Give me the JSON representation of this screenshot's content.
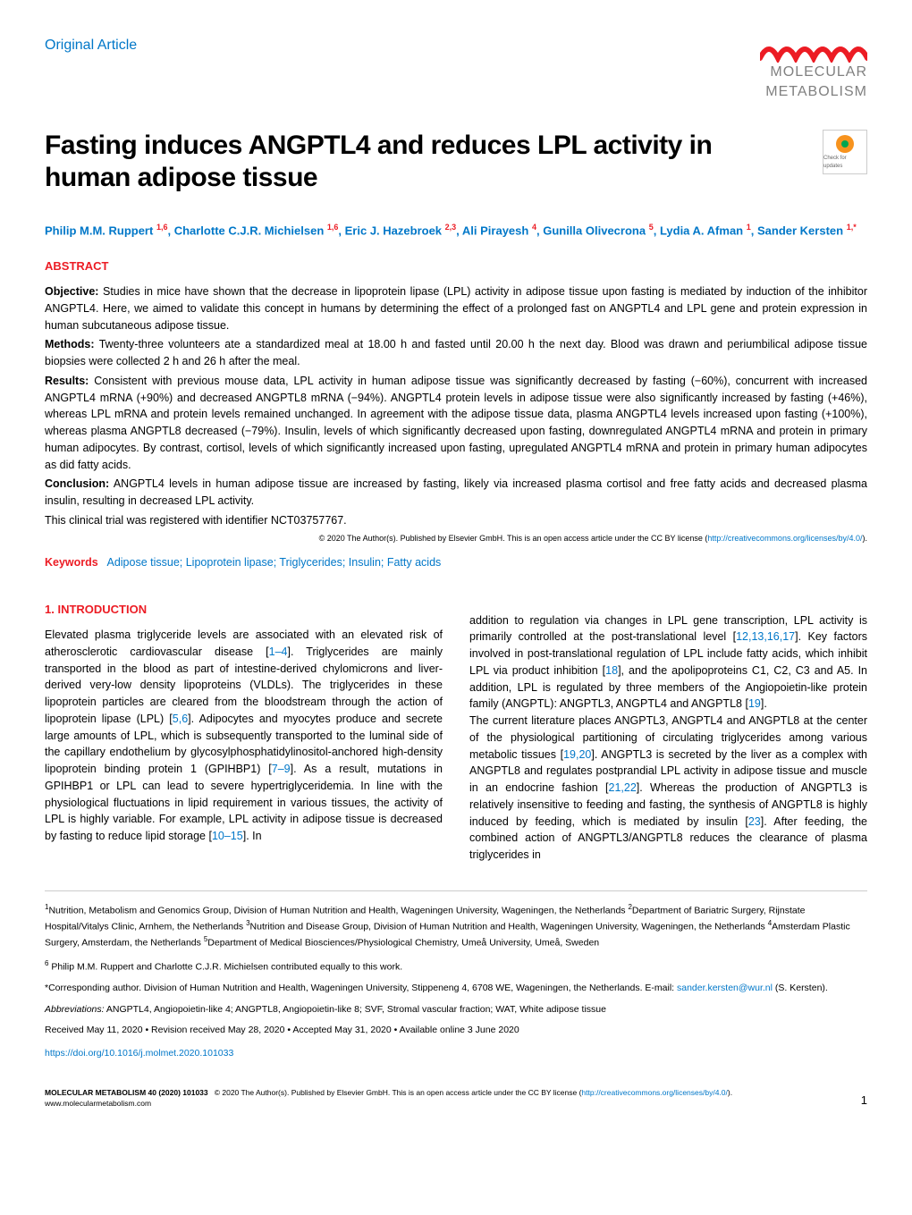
{
  "colors": {
    "brand_blue": "#0077c8",
    "brand_red": "#ec1c24",
    "text_gray": "#808080",
    "text_black": "#000000",
    "background": "#ffffff"
  },
  "header": {
    "article_type": "Original Article",
    "logo_line1": "MOLECULAR",
    "logo_line2": "METABOLISM",
    "check_updates": "Check for updates"
  },
  "title": "Fasting induces ANGPTL4 and reduces LPL activity in human adipose tissue",
  "authors_html": "Philip M.M. Ruppert|1,6|, Charlotte C.J.R. Michielsen|1,6|, Eric J. Hazebroek|2,3|, Ali Pirayesh|4|, Gunilla Olivecrona|5|, Lydia A. Afman|1|, Sander Kersten|1,*|",
  "abstract": {
    "heading": "ABSTRACT",
    "objective_label": "Objective:",
    "objective": "Studies in mice have shown that the decrease in lipoprotein lipase (LPL) activity in adipose tissue upon fasting is mediated by induction of the inhibitor ANGPTL4. Here, we aimed to validate this concept in humans by determining the effect of a prolonged fast on ANGPTL4 and LPL gene and protein expression in human subcutaneous adipose tissue.",
    "methods_label": "Methods:",
    "methods": "Twenty-three volunteers ate a standardized meal at 18.00 h and fasted until 20.00 h the next day. Blood was drawn and periumbilical adipose tissue biopsies were collected 2 h and 26 h after the meal.",
    "results_label": "Results:",
    "results": "Consistent with previous mouse data, LPL activity in human adipose tissue was significantly decreased by fasting (−60%), concurrent with increased ANGPTL4 mRNA (+90%) and decreased ANGPTL8 mRNA (−94%). ANGPTL4 protein levels in adipose tissue were also significantly increased by fasting (+46%), whereas LPL mRNA and protein levels remained unchanged. In agreement with the adipose tissue data, plasma ANGPTL4 levels increased upon fasting (+100%), whereas plasma ANGPTL8 decreased (−79%). Insulin, levels of which significantly decreased upon fasting, downregulated ANGPTL4 mRNA and protein in primary human adipocytes. By contrast, cortisol, levels of which significantly increased upon fasting, upregulated ANGPTL4 mRNA and protein in primary human adipocytes as did fatty acids.",
    "conclusion_label": "Conclusion:",
    "conclusion": "ANGPTL4 levels in human adipose tissue are increased by fasting, likely via increased plasma cortisol and free fatty acids and decreased plasma insulin, resulting in decreased LPL activity.",
    "registration": "This clinical trial was registered with identifier NCT03757767.",
    "license": "© 2020 The Author(s). Published by Elsevier GmbH. This is an open access article under the CC BY license (",
    "license_url_text": "http://creativecommons.org/licenses/by/4.0/",
    "license_close": ")."
  },
  "keywords": {
    "label": "Keywords",
    "values": "Adipose tissue; Lipoprotein lipase; Triglycerides; Insulin; Fatty acids"
  },
  "introduction": {
    "heading": "1. INTRODUCTION",
    "col1": "Elevated plasma triglyceride levels are associated with an elevated risk of atherosclerotic cardiovascular disease [1–4]. Triglycerides are mainly transported in the blood as part of intestine-derived chylomicrons and liver-derived very-low density lipoproteins (VLDLs). The triglycerides in these lipoprotein particles are cleared from the bloodstream through the action of lipoprotein lipase (LPL) [5,6]. Adipocytes and myocytes produce and secrete large amounts of LPL, which is subsequently transported to the luminal side of the capillary endothelium by glycosylphosphatidylinositol-anchored high-density lipoprotein binding protein 1 (GPIHBP1) [7–9]. As a result, mutations in GPIHBP1 or LPL can lead to severe hypertriglyceridemia. In line with the physiological fluctuations in lipid requirement in various tissues, the activity of LPL is highly variable. For example, LPL activity in adipose tissue is decreased by fasting to reduce lipid storage [10–15]. In",
    "col2": "addition to regulation via changes in LPL gene transcription, LPL activity is primarily controlled at the post-translational level [12,13,16,17]. Key factors involved in post-translational regulation of LPL include fatty acids, which inhibit LPL via product inhibition [18], and the apolipoproteins C1, C2, C3 and A5. In addition, LPL is regulated by three members of the Angiopoietin-like protein family (ANGPTL): ANGPTL3, ANGPTL4 and ANGPTL8 [19].\nThe current literature places ANGPTL3, ANGPTL4 and ANGPTL8 at the center of the physiological partitioning of circulating triglycerides among various metabolic tissues [19,20]. ANGPTL3 is secreted by the liver as a complex with ANGPTL8 and regulates postprandial LPL activity in adipose tissue and muscle in an endocrine fashion [21,22]. Whereas the production of ANGPTL3 is relatively insensitive to feeding and fasting, the synthesis of ANGPTL8 is highly induced by feeding, which is mediated by insulin [23]. After feeding, the combined action of ANGPTL3/ANGPTL8 reduces the clearance of plasma triglycerides in"
  },
  "affiliations": "1Nutrition, Metabolism and Genomics Group, Division of Human Nutrition and Health, Wageningen University, Wageningen, the Netherlands 2Department of Bariatric Surgery, Rijnstate Hospital/Vitalys Clinic, Arnhem, the Netherlands 3Nutrition and Disease Group, Division of Human Nutrition and Health, Wageningen University, Wageningen, the Netherlands 4Amsterdam Plastic Surgery, Amsterdam, the Netherlands 5Department of Medical Biosciences/Physiological Chemistry, Umeå University, Umeå, Sweden",
  "equal_contrib": "6 Philip M.M. Ruppert and Charlotte C.J.R. Michielsen contributed equally to this work.",
  "corresponding": "*Corresponding author. Division of Human Nutrition and Health, Wageningen University, Stippeneng 4, 6708 WE, Wageningen, the Netherlands. E-mail: ",
  "corresponding_email": "sander.kersten@wur.nl",
  "corresponding_name": " (S. Kersten).",
  "abbreviations_label": "Abbreviations:",
  "abbreviations": " ANGPTL4, Angiopoietin-like 4; ANGPTL8, Angiopoietin-like 8; SVF, Stromal vascular fraction; WAT, White adipose tissue",
  "dates": "Received May 11, 2020 • Revision received May 28, 2020 • Accepted May 31, 2020 • Available online 3 June 2020",
  "doi": "https://doi.org/10.1016/j.molmet.2020.101033",
  "footer": {
    "journal": "MOLECULAR METABOLISM 40 (2020) 101033",
    "copyright": "© 2020 The Author(s). Published by Elsevier GmbH. This is an open access article under the CC BY license (",
    "cc_url": "http://creativecommons.org/licenses/by/4.0/",
    "copyright_close": ").",
    "www": "www.molecularmetabolism.com",
    "page": "1"
  }
}
